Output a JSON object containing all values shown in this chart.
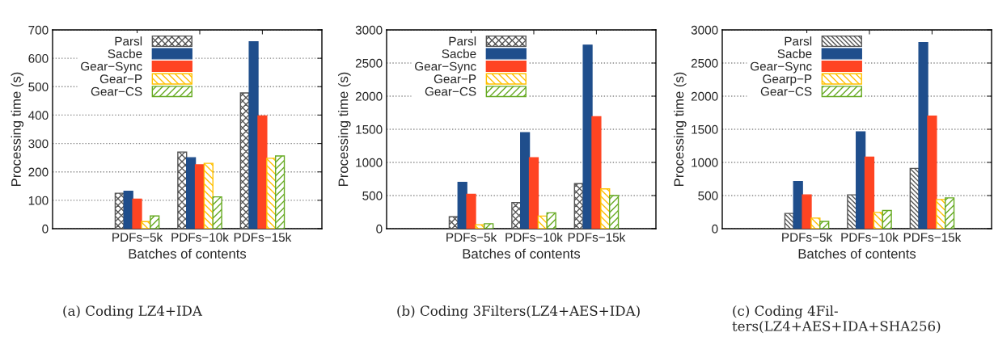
{
  "chart_data": [
    {
      "type": "bar",
      "categories": [
        "PDFs−5k",
        "PDFs−10k",
        "PDFs−15k"
      ],
      "xlabel": "Batches of contents",
      "ylabel": "Processing time (s)",
      "ylim": [
        0,
        700
      ],
      "yticks": [
        0,
        100,
        200,
        300,
        400,
        500,
        600,
        700
      ],
      "grid": "y",
      "legend": "top left",
      "annotations": [
        "(a) Coding LZ4+IDA"
      ],
      "series": [
        {
          "name": "Parsl",
          "color": "#555555",
          "values": [
            125,
            270,
            478
          ]
        },
        {
          "name": "Sacbe",
          "color": "#1f4e8c",
          "values": [
            132,
            250,
            658
          ]
        },
        {
          "name": "Gear−Sync",
          "color": "#ff4422",
          "values": [
            104,
            225,
            397
          ]
        },
        {
          "name": "Gear−P",
          "color": "#ffc000",
          "values": [
            25,
            230,
            248
          ]
        },
        {
          "name": "Gear−CS",
          "color": "#66aa22",
          "values": [
            45,
            112,
            256
          ]
        }
      ]
    },
    {
      "type": "bar",
      "categories": [
        "PDFs−5k",
        "PDFs−10k",
        "PDFs−15k"
      ],
      "xlabel": "Batches of contents",
      "ylabel": "Processing time (s)",
      "ylim": [
        0,
        3000
      ],
      "yticks": [
        0,
        500,
        1000,
        1500,
        2000,
        2500,
        3000
      ],
      "grid": "y",
      "legend": "top left",
      "annotations": [
        "(b) Coding 3Filters(LZ4+AES+IDA)"
      ],
      "series": [
        {
          "name": "Parsl",
          "color": "#555555",
          "values": [
            180,
            395,
            680
          ]
        },
        {
          "name": "Sacbe",
          "color": "#1f4e8c",
          "values": [
            700,
            1450,
            2770
          ]
        },
        {
          "name": "Gear−Sync",
          "color": "#ff4422",
          "values": [
            520,
            1070,
            1690
          ]
        },
        {
          "name": "Gear−P",
          "color": "#ffc000",
          "values": [
            60,
            190,
            600
          ]
        },
        {
          "name": "Gear−CS",
          "color": "#66aa22",
          "values": [
            75,
            240,
            500
          ]
        }
      ]
    },
    {
      "type": "bar",
      "categories": [
        "PDFs−5k",
        "PDFs−10k",
        "PDFs−15k"
      ],
      "xlabel": "Batches of contents",
      "ylabel": "Processing time (s)",
      "ylim": [
        0,
        3000
      ],
      "yticks": [
        0,
        500,
        1000,
        1500,
        2000,
        2500,
        3000
      ],
      "grid": "y",
      "legend": "top left",
      "annotations": [
        "(c) Coding 4Fil-\nters(LZ4+AES+IDA+SHA256)"
      ],
      "series": [
        {
          "name": "Parsl",
          "color": "#555555",
          "values": [
            230,
            510,
            910
          ]
        },
        {
          "name": "Sacbe",
          "color": "#1f4e8c",
          "values": [
            710,
            1460,
            2810
          ]
        },
        {
          "name": "Gear−Sync",
          "color": "#ff4422",
          "values": [
            510,
            1080,
            1700
          ]
        },
        {
          "name": "Gearp−P",
          "color": "#ffc000",
          "values": [
            160,
            245,
            440
          ]
        },
        {
          "name": "Gear−CS",
          "color": "#66aa22",
          "values": [
            110,
            275,
            465
          ]
        }
      ]
    }
  ]
}
